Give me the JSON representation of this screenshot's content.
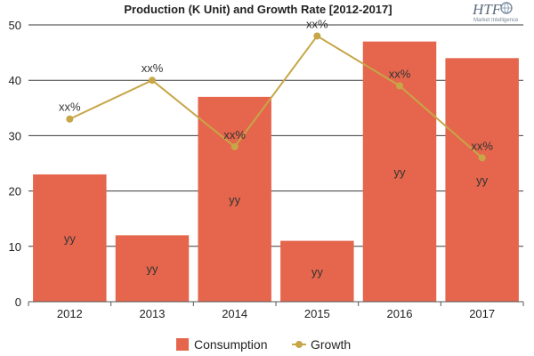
{
  "title": "Production (K Unit) and Growth Rate [2012-2017]",
  "logo": {
    "main": "HTF",
    "sub": "Market Intelligence"
  },
  "colors": {
    "bar": "#e5664c",
    "line": "#c7a648",
    "grid": "#3a3a3a"
  },
  "legend": [
    {
      "label": "Consumption",
      "kind": "bar"
    },
    {
      "label": "Growth",
      "kind": "line"
    }
  ],
  "chart_data": {
    "type": "bar",
    "categories": [
      "2012",
      "2013",
      "2014",
      "2015",
      "2016",
      "2017"
    ],
    "ylim": [
      0,
      50
    ],
    "yticks": [
      0,
      10,
      20,
      30,
      40,
      50
    ],
    "grid": true,
    "legend_position": "bottom",
    "series": [
      {
        "name": "Consumption",
        "type": "bar",
        "values": [
          23,
          12,
          37,
          11,
          47,
          44
        ],
        "labels": [
          "yy",
          "yy",
          "yy",
          "yy",
          "yy",
          "yy"
        ]
      },
      {
        "name": "Growth",
        "type": "line",
        "values": [
          33,
          40,
          28,
          48,
          39,
          26
        ],
        "labels": [
          "xx%",
          "xx%",
          "xx%",
          "xx%",
          "xx%",
          "xx%"
        ]
      }
    ]
  }
}
